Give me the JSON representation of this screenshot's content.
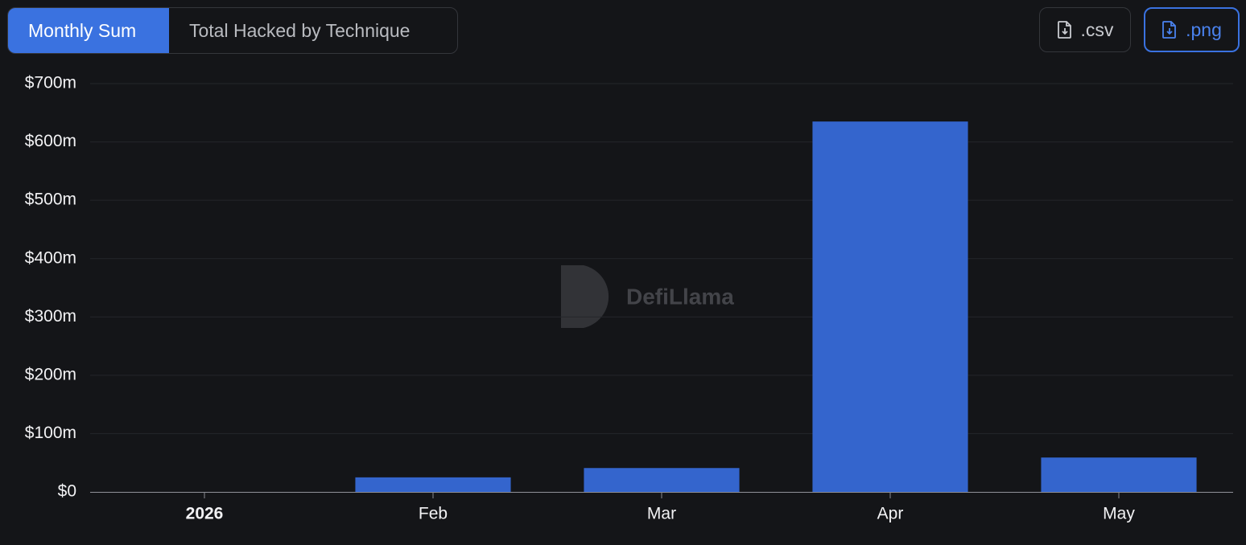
{
  "ui": {
    "tabs": [
      "Monthly Sum",
      "Total Hacked by Technique"
    ],
    "buttons": [
      ".csv",
      ".png"
    ],
    "watermark": "DefiLlama"
  },
  "chart_data": {
    "type": "bar",
    "categories": [
      "2026",
      "Feb",
      "Mar",
      "Apr",
      "May"
    ],
    "values": [
      0,
      25000000,
      41000000,
      635000000,
      59000000
    ],
    "color": "#3465cd",
    "ylim": [
      0,
      700000000
    ],
    "yticks": [
      {
        "value": 0,
        "label": "$0"
      },
      {
        "value": 100000000,
        "label": "$100m"
      },
      {
        "value": 200000000,
        "label": "$200m"
      },
      {
        "value": 300000000,
        "label": "$300m"
      },
      {
        "value": 400000000,
        "label": "$400m"
      },
      {
        "value": 500000000,
        "label": "$500m"
      },
      {
        "value": 600000000,
        "label": "$600m"
      },
      {
        "value": 700000000,
        "label": "$700m"
      }
    ],
    "grid": true
  }
}
